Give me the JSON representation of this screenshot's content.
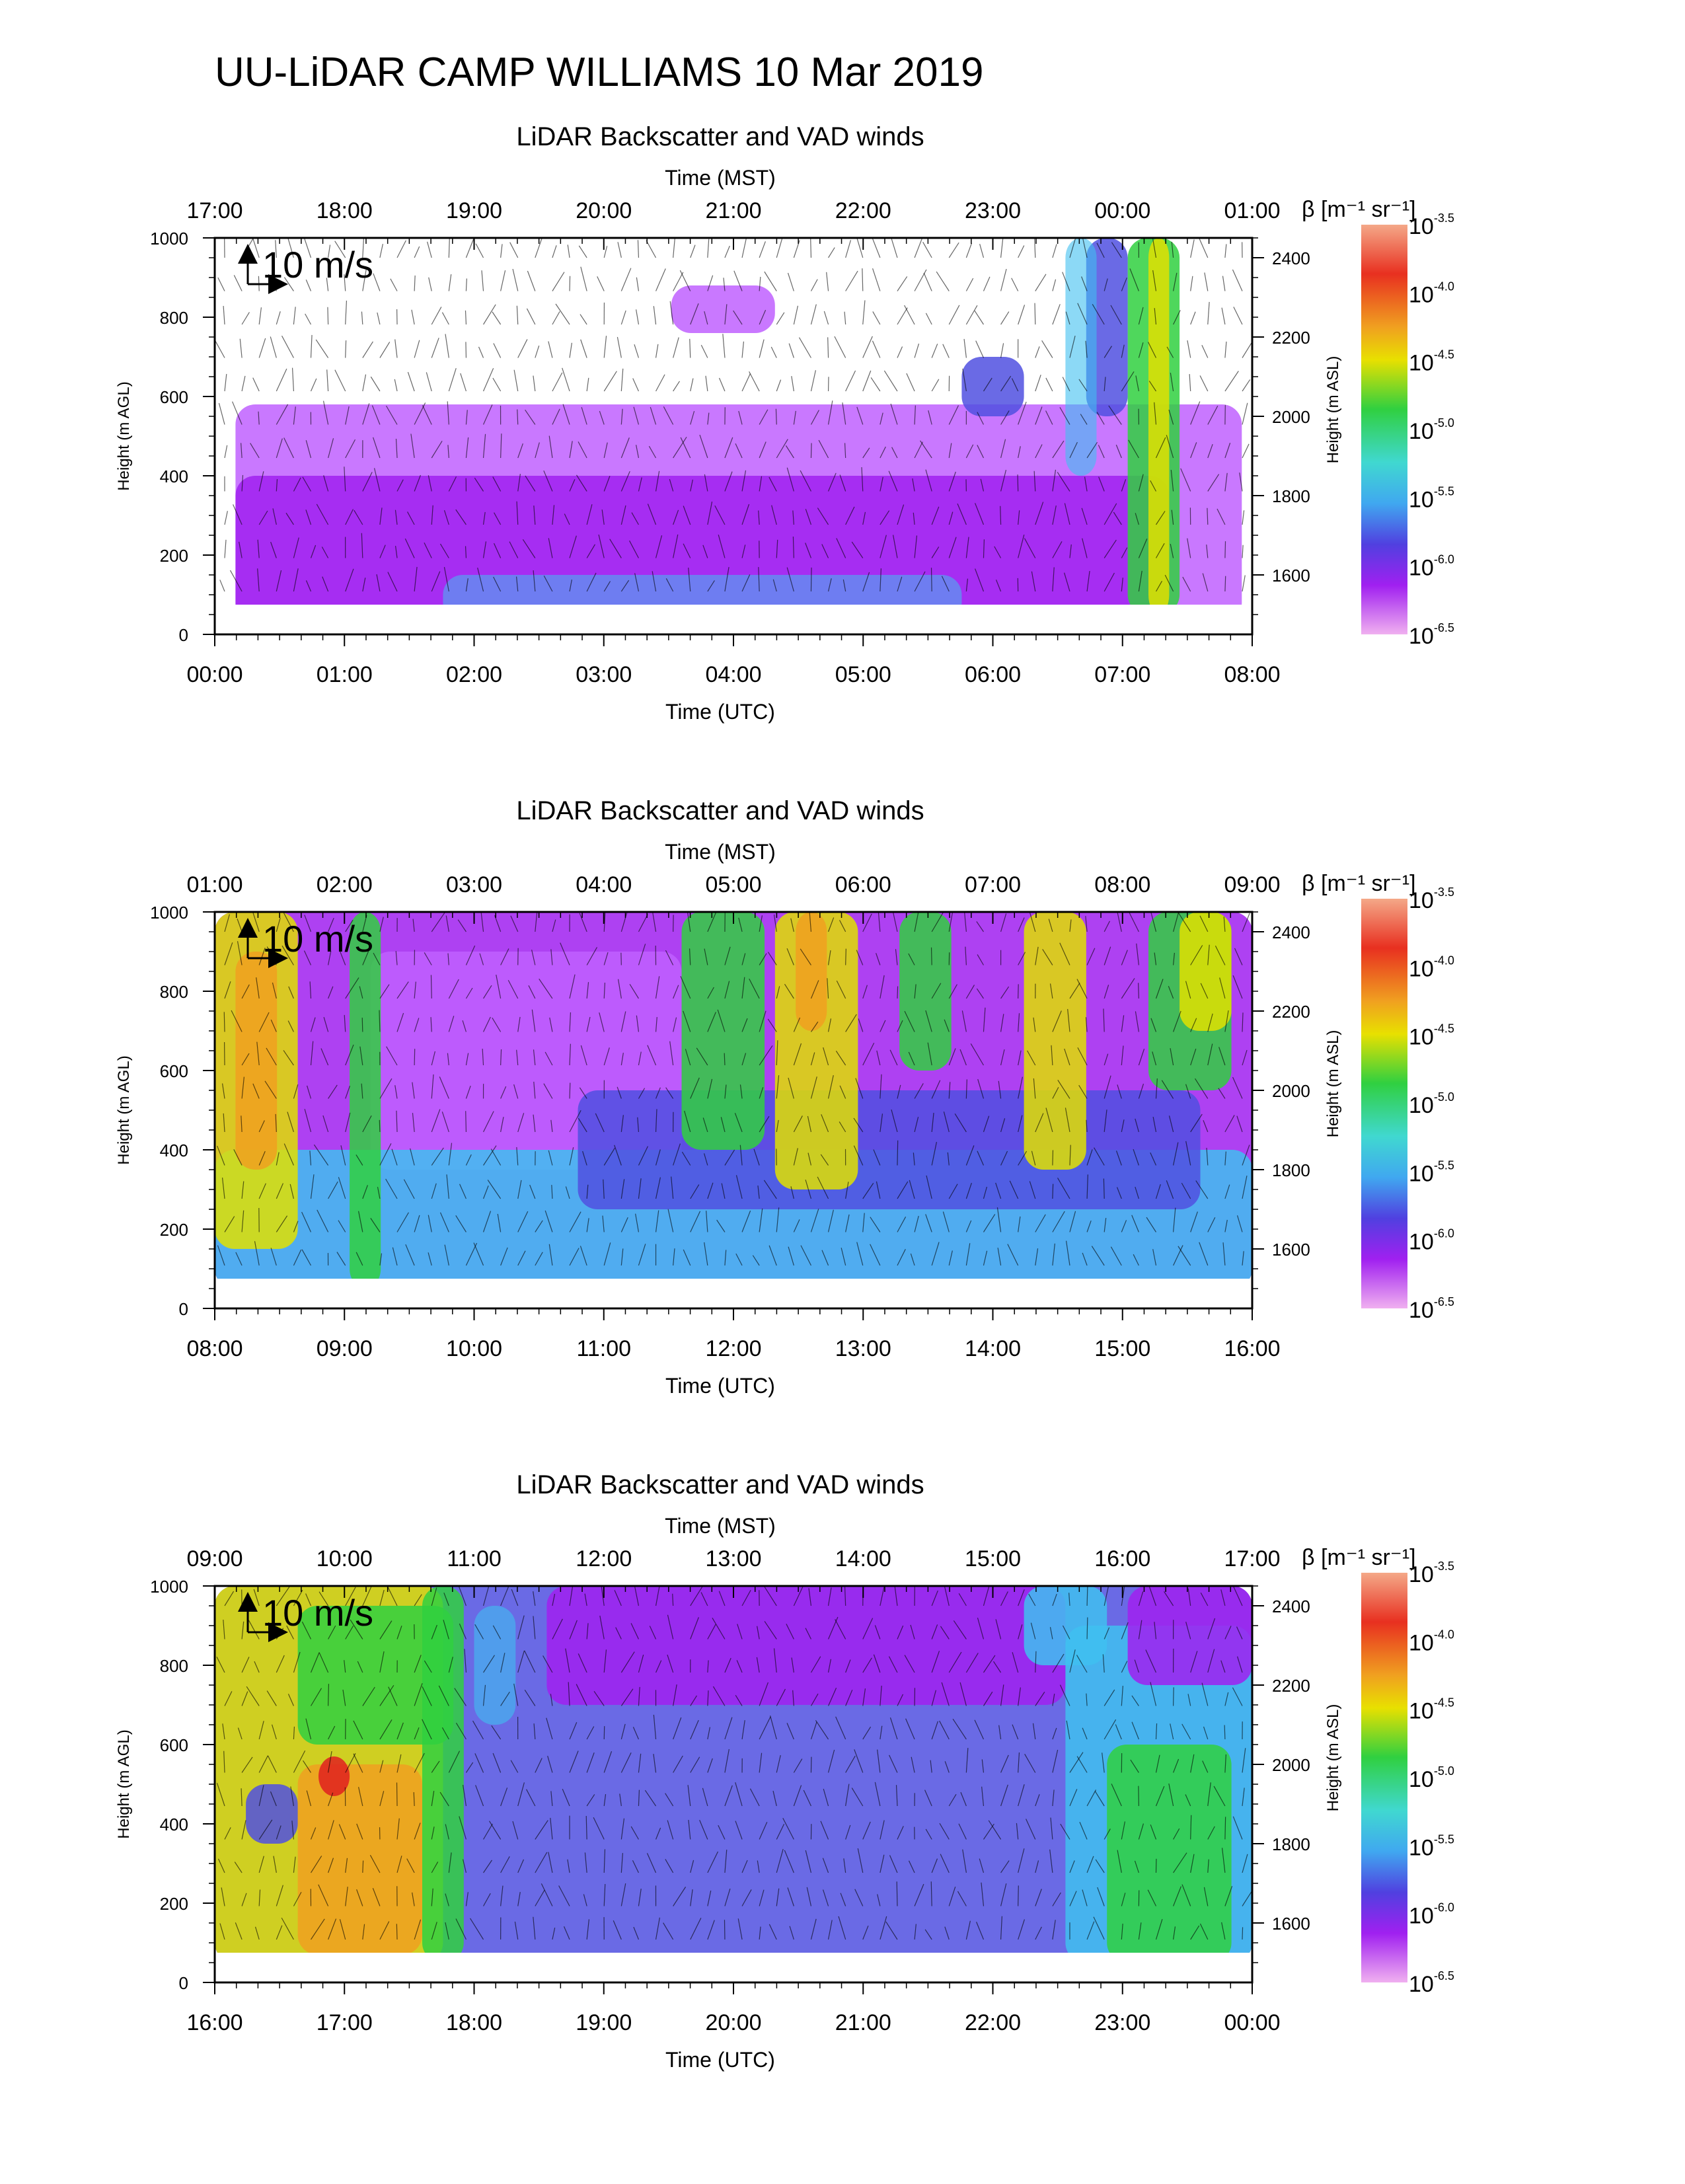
{
  "title": "UU-LiDAR CAMP WILLIAMS 10 Mar 2019",
  "common": {
    "top_axis_label": "Time (MST)",
    "bottom_axis_label": "Time (UTC)",
    "left_axis_label": "Height (m AGL)",
    "right_axis_label": "Height (m ASL)",
    "colorbar_label": "β [m⁻¹ sr⁻¹]",
    "scale_arrow_label": "10 m/s",
    "left_ticks": [
      "0",
      "200",
      "400",
      "600",
      "800",
      "1000"
    ],
    "right_ticks": [
      "1600",
      "1800",
      "2000",
      "2200",
      "2400"
    ],
    "colorbar_base": "10",
    "colorbar_exponents": [
      "-3.5",
      "-4.0",
      "-4.5",
      "-5.0",
      "-5.5",
      "-6.0",
      "-6.5"
    ]
  },
  "chart_data": [
    {
      "type": "heatmap",
      "title": "LiDAR Backscatter and VAD winds",
      "x_top_ticks": [
        "17:00",
        "18:00",
        "19:00",
        "20:00",
        "21:00",
        "22:00",
        "23:00",
        "00:00",
        "01:00"
      ],
      "x_bottom_ticks": [
        "00:00",
        "01:00",
        "02:00",
        "03:00",
        "04:00",
        "05:00",
        "06:00",
        "07:00",
        "08:00"
      ],
      "ylim": [
        0,
        1000
      ],
      "y_right_range": [
        1450,
        2450
      ],
      "color_scale": "log10 backscatter, -6.5 to -3.5"
    },
    {
      "type": "heatmap",
      "title": "LiDAR Backscatter and VAD winds",
      "x_top_ticks": [
        "01:00",
        "02:00",
        "03:00",
        "04:00",
        "05:00",
        "06:00",
        "07:00",
        "08:00",
        "09:00"
      ],
      "x_bottom_ticks": [
        "08:00",
        "09:00",
        "10:00",
        "11:00",
        "12:00",
        "13:00",
        "14:00",
        "15:00",
        "16:00"
      ],
      "ylim": [
        0,
        1000
      ],
      "y_right_range": [
        1450,
        2450
      ],
      "color_scale": "log10 backscatter, -6.5 to -3.5"
    },
    {
      "type": "heatmap",
      "title": "LiDAR Backscatter and VAD winds",
      "x_top_ticks": [
        "09:00",
        "10:00",
        "11:00",
        "12:00",
        "13:00",
        "14:00",
        "15:00",
        "16:00",
        "17:00"
      ],
      "x_bottom_ticks": [
        "16:00",
        "17:00",
        "18:00",
        "19:00",
        "20:00",
        "21:00",
        "22:00",
        "23:00",
        "00:00"
      ],
      "ylim": [
        0,
        1000
      ],
      "y_right_range": [
        1450,
        2450
      ],
      "color_scale": "log10 backscatter, -6.5 to -3.5"
    }
  ],
  "colors": {
    "purple": "#a020f0",
    "violet": "#c060ff",
    "blue": "#5050e0",
    "cyan": "#40c0f0",
    "aqua": "#40e0c0",
    "green": "#30d040",
    "yellow": "#e0e000",
    "orange": "#f0a020",
    "red": "#e02020",
    "salmon": "#f09070",
    "pink": "#f0b0f0"
  }
}
